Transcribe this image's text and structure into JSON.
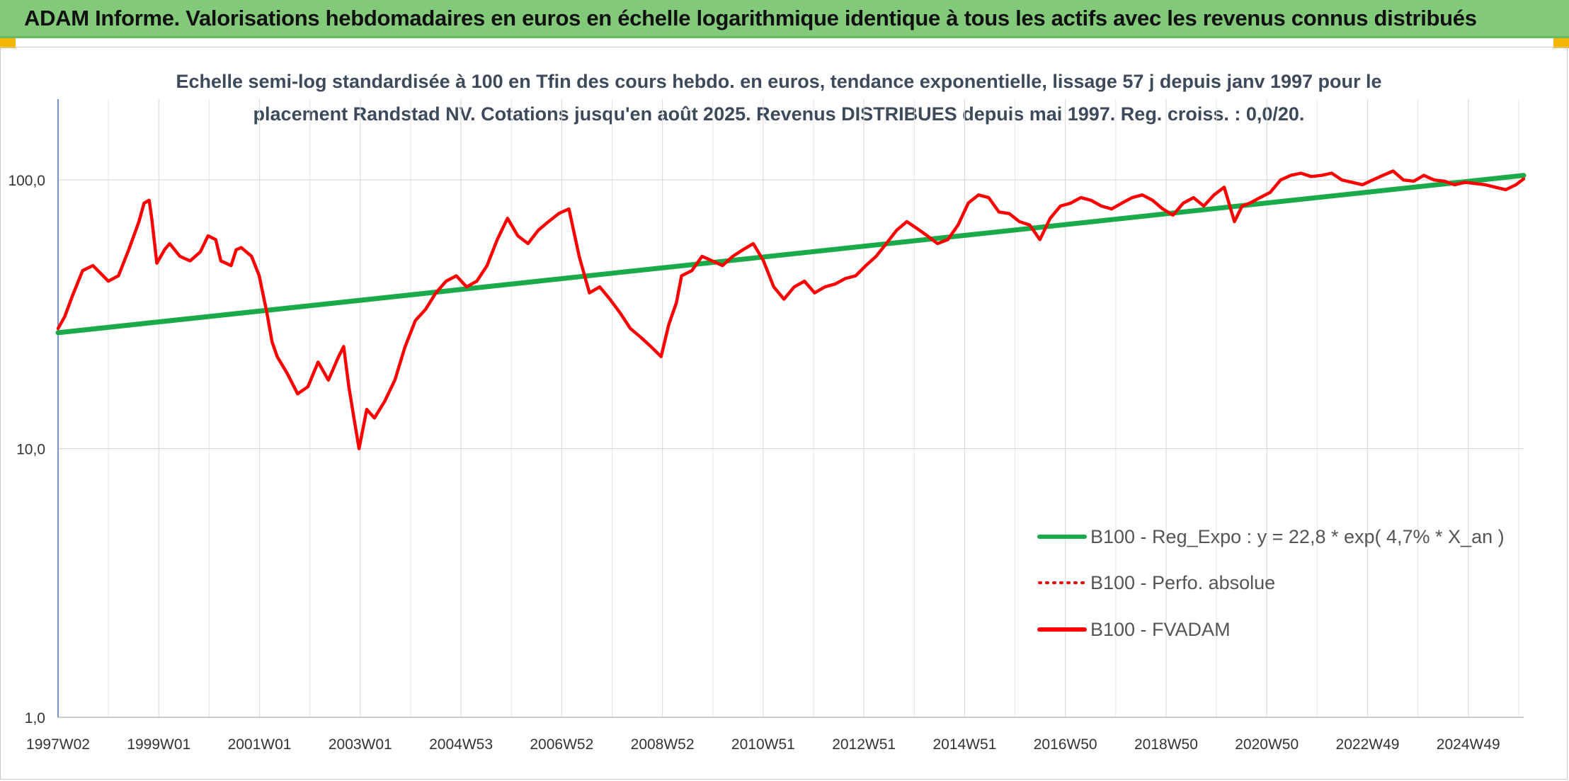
{
  "banner": {
    "title": "ADAM Informe. Valorisations hebdomadaires en euros en échelle logarithmique identique à tous les actifs avec les revenus connus distribués",
    "background": "#82c97a"
  },
  "chart_data": {
    "type": "line",
    "title": "Echelle semi-log standardisée à 100 en Tfin des cours hebdo. en euros, tendance exponentielle, lissage 57 j depuis janv 1997 pour le placement Randstad NV. Cotations jusqu'en août 2025. Revenus DISTRIBUES depuis mai 1997. Reg. croiss. : 0,0/20.",
    "y_scale": "log",
    "ylim": [
      1,
      200
    ],
    "y_ticks": [
      "1,0",
      "10,0",
      "100,0"
    ],
    "x_tick_labels": [
      "1997W02",
      "1999W01",
      "2001W01",
      "2003W01",
      "2004W53",
      "2006W52",
      "2008W52",
      "2010W51",
      "2012W51",
      "2014W51",
      "2016W50",
      "2018W50",
      "2020W50",
      "2022W49",
      "2024W49"
    ],
    "x_range": [
      1997.02,
      2025.65
    ],
    "grid": true,
    "legend_position": "bottom-right",
    "series": [
      {
        "name": "B100 - Reg_Expo : y = 22,8 * exp( 4,7% *  X_an )",
        "color": "#1aaa4a",
        "style": "solid",
        "x": [
          1997.02,
          2025.65
        ],
        "y": [
          27,
          104
        ]
      },
      {
        "name": "B100 - Perfo. absolue",
        "color": "#ff0000",
        "style": "dotted",
        "x": [],
        "y": []
      },
      {
        "name": "B100 - FVADAM",
        "color": "#ff0000",
        "style": "solid",
        "x": [
          1997.02,
          1997.15,
          1997.3,
          1997.5,
          1997.7,
          1997.9,
          1998.0,
          1998.2,
          1998.4,
          1998.5,
          1998.6,
          1998.7,
          1998.8,
          1998.85,
          1998.95,
          1999.1,
          1999.2,
          1999.4,
          1999.6,
          1999.8,
          1999.95,
          2000.1,
          2000.2,
          2000.4,
          2000.5,
          2000.6,
          2000.8,
          2000.95,
          2001.1,
          2001.2,
          2001.3,
          2001.5,
          2001.7,
          2001.9,
          2002.1,
          2002.3,
          2002.5,
          2002.6,
          2002.7,
          2002.8,
          2002.9,
          2003.05,
          2003.2,
          2003.4,
          2003.6,
          2003.8,
          2004.0,
          2004.2,
          2004.4,
          2004.6,
          2004.8,
          2005.0,
          2005.2,
          2005.4,
          2005.6,
          2005.8,
          2006.0,
          2006.2,
          2006.4,
          2006.6,
          2006.8,
          2007.0,
          2007.2,
          2007.4,
          2007.6,
          2007.8,
          2008.0,
          2008.2,
          2008.4,
          2008.6,
          2008.8,
          2008.95,
          2009.1,
          2009.2,
          2009.4,
          2009.6,
          2009.8,
          2010.0,
          2010.2,
          2010.4,
          2010.6,
          2010.8,
          2011.0,
          2011.2,
          2011.4,
          2011.6,
          2011.8,
          2012.0,
          2012.2,
          2012.4,
          2012.6,
          2012.8,
          2013.0,
          2013.2,
          2013.4,
          2013.6,
          2013.8,
          2014.0,
          2014.2,
          2014.4,
          2014.6,
          2014.8,
          2015.0,
          2015.2,
          2015.4,
          2015.6,
          2015.8,
          2016.0,
          2016.2,
          2016.4,
          2016.6,
          2016.8,
          2017.0,
          2017.2,
          2017.4,
          2017.6,
          2017.8,
          2018.0,
          2018.2,
          2018.4,
          2018.6,
          2018.8,
          2019.0,
          2019.2,
          2019.4,
          2019.6,
          2019.8,
          2020.0,
          2020.15,
          2020.3,
          2020.5,
          2020.7,
          2020.9,
          2021.1,
          2021.3,
          2021.5,
          2021.7,
          2021.9,
          2022.1,
          2022.3,
          2022.5,
          2022.7,
          2022.9,
          2023.1,
          2023.3,
          2023.5,
          2023.7,
          2023.9,
          2024.1,
          2024.3,
          2024.5,
          2024.7,
          2024.9,
          2025.1,
          2025.3,
          2025.5,
          2025.65
        ],
        "y": [
          28,
          31,
          37,
          46,
          48,
          44,
          42,
          44,
          55,
          62,
          70,
          82,
          84,
          72,
          49,
          55,
          58,
          52,
          50,
          54,
          62,
          60,
          50,
          48,
          55,
          56,
          52,
          44,
          32,
          25,
          22,
          19,
          16,
          17,
          21,
          18,
          22,
          24,
          17,
          13,
          10,
          14,
          13,
          15,
          18,
          24,
          30,
          33,
          38,
          42,
          44,
          40,
          42,
          48,
          60,
          72,
          62,
          58,
          65,
          70,
          75,
          78,
          52,
          38,
          40,
          36,
          32,
          28,
          26,
          24,
          22,
          29,
          35,
          44,
          46,
          52,
          50,
          48,
          52,
          55,
          58,
          50,
          40,
          36,
          40,
          42,
          38,
          40,
          41,
          43,
          44,
          48,
          52,
          58,
          65,
          70,
          66,
          62,
          58,
          60,
          68,
          82,
          88,
          86,
          76,
          75,
          70,
          68,
          60,
          72,
          80,
          82,
          86,
          84,
          80,
          78,
          82,
          86,
          88,
          84,
          78,
          74,
          82,
          86,
          80,
          88,
          94,
          70,
          80,
          82,
          86,
          90,
          100,
          104,
          106,
          103,
          104,
          106,
          100,
          98,
          96,
          100,
          104,
          108,
          100,
          99,
          104,
          100,
          99,
          96,
          98,
          97,
          96,
          94,
          92,
          96,
          101
        ]
      }
    ]
  }
}
